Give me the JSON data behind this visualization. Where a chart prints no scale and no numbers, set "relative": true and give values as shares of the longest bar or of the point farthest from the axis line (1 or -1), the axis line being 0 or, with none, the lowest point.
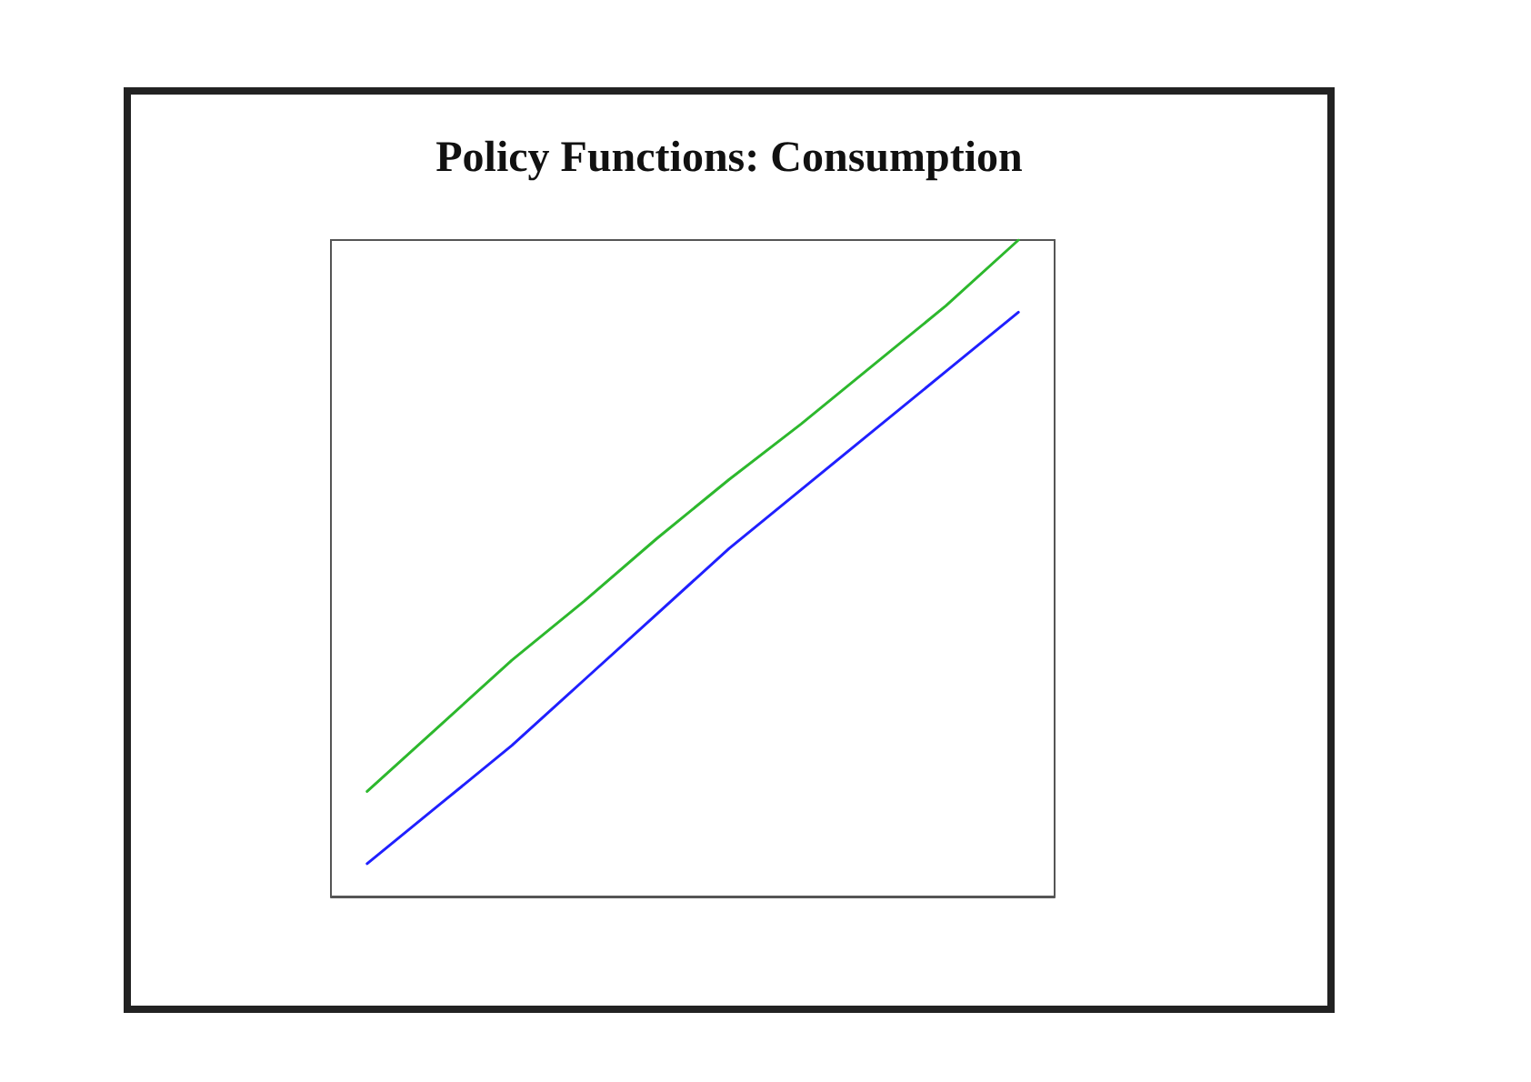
{
  "chart_data": {
    "type": "line",
    "title": "Policy Functions: Consumption",
    "relative": true,
    "categories": [
      null,
      null,
      null,
      null,
      null,
      null,
      null,
      null,
      null,
      null
    ],
    "series": [
      {
        "color": "#2db82d",
        "values": [
          0.16,
          0.26,
          0.36,
          0.45,
          0.545,
          0.635,
          0.72,
          0.81,
          0.9,
          1.0
        ]
      },
      {
        "color": "#2020ff",
        "values": [
          0.05,
          0.14,
          0.23,
          0.33,
          0.43,
          0.53,
          0.62,
          0.71,
          0.8,
          0.89
        ]
      }
    ],
    "marker": "none",
    "line_style": "solid"
  }
}
